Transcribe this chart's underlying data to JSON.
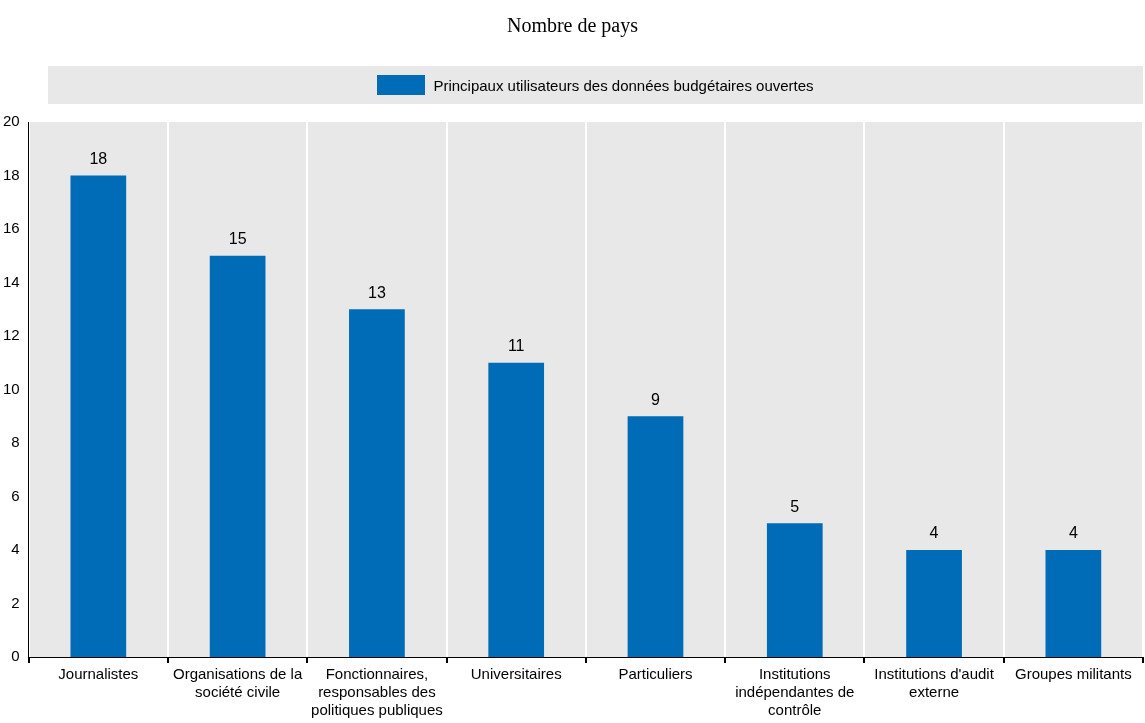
{
  "chart_data": {
    "type": "bar",
    "title": "Nombre de pays",
    "categories": [
      "Journalistes",
      "Organisations de la société civile",
      "Fonctionnaires, responsables des politiques publiques",
      "Universitaires",
      "Particuliers",
      "Institutions indépendantes de contrôle",
      "Institutions d'audit externe",
      "Groupes militants"
    ],
    "series": [
      {
        "name": "Principaux utilisateurs des données budgétaires ouvertes",
        "color": "#006bb6",
        "values": [
          18,
          15,
          13,
          11,
          9,
          5,
          4,
          4
        ]
      }
    ],
    "ylim": [
      0,
      20
    ],
    "yticks": [
      0,
      2,
      4,
      6,
      8,
      10,
      12,
      14,
      16,
      18,
      20
    ],
    "grid": "x",
    "legend": "top",
    "data_labels": true
  }
}
